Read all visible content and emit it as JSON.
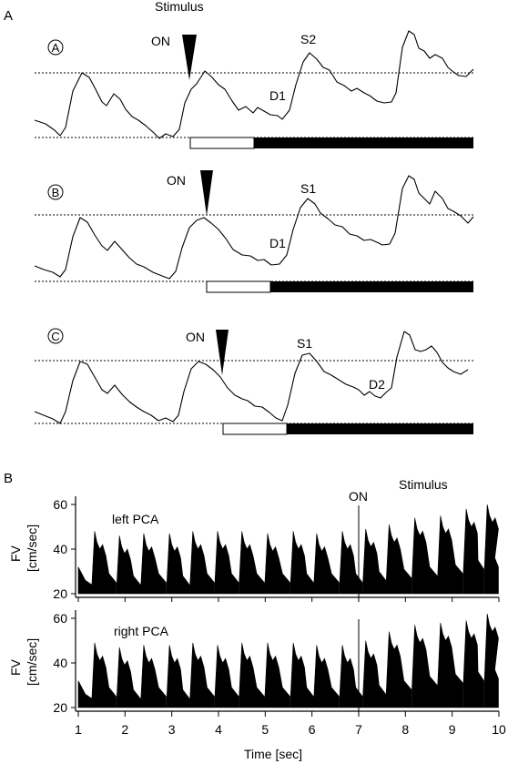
{
  "panel_a": {
    "label": "A",
    "stimulus_label": "Stimulus",
    "on_label": "ON",
    "conditions": [
      {
        "id": "A",
        "labels": [
          "S2",
          "D1"
        ]
      },
      {
        "id": "B",
        "labels": [
          "S1",
          "D1"
        ]
      },
      {
        "id": "C",
        "labels": [
          "S1",
          "D2"
        ]
      }
    ]
  },
  "panel_b": {
    "label": "B",
    "stimulus_label": "Stimulus",
    "on_label": "ON",
    "ylabel_line1": "FV",
    "ylabel_line2": "[cm/sec]",
    "xlabel": "Time [sec]",
    "x_ticks": [
      "1",
      "2",
      "3",
      "4",
      "5",
      "6",
      "7",
      "8",
      "9",
      "10"
    ],
    "y_ticks": [
      "20",
      "40",
      "60"
    ],
    "series": [
      {
        "name": "left PCA"
      },
      {
        "name": "right PCA"
      }
    ]
  },
  "chart_data": {
    "type": "area",
    "xlabel": "Time [sec]",
    "ylabel": "FV [cm/sec]",
    "xlim": [
      1,
      10
    ],
    "ylim": [
      20,
      60
    ],
    "stimulus_on_time": 7,
    "series": [
      {
        "name": "left PCA",
        "beats_t": [
          1.35,
          1.88,
          2.4,
          2.95,
          3.45,
          3.98,
          4.5,
          5.05,
          5.6,
          6.1,
          6.65,
          7.15,
          7.65,
          8.2,
          8.75,
          9.3,
          9.75
        ],
        "systolic_peak": [
          48,
          46,
          47,
          47,
          48,
          48,
          48,
          47,
          48,
          47,
          48,
          49,
          51,
          54,
          55,
          58,
          60
        ],
        "diastolic_min": [
          24,
          23,
          24,
          23,
          24,
          24,
          24,
          24,
          24,
          24,
          24,
          25,
          26,
          27,
          28,
          30,
          31
        ]
      },
      {
        "name": "right PCA",
        "beats_t": [
          1.35,
          1.88,
          2.4,
          2.95,
          3.45,
          3.98,
          4.5,
          5.05,
          5.6,
          6.1,
          6.65,
          7.15,
          7.65,
          8.2,
          8.75,
          9.3,
          9.75
        ],
        "systolic_peak": [
          49,
          47,
          48,
          48,
          49,
          48,
          49,
          49,
          49,
          48,
          48,
          50,
          54,
          57,
          58,
          59,
          62
        ],
        "diastolic_min": [
          24,
          23,
          24,
          23,
          24,
          24,
          24,
          24,
          24,
          24,
          24,
          25,
          27,
          29,
          30,
          31,
          32
        ]
      }
    ]
  }
}
